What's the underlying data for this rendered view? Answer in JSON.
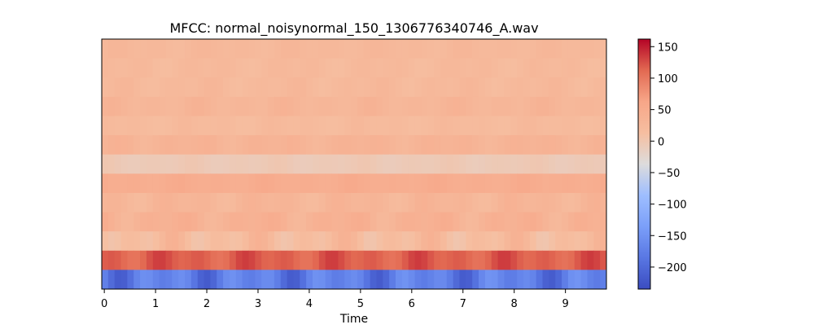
{
  "chart_data": {
    "type": "heatmap",
    "title": "MFCC: normal_noisynormal_150_1306776340746_A.wav",
    "xlabel": "Time",
    "ylabel": "",
    "xlim": [
      -0.05,
      9.8
    ],
    "x_ticks": [
      "0",
      "1",
      "2",
      "3",
      "4",
      "5",
      "6",
      "7",
      "8",
      "9"
    ],
    "frames_per_second": 8.0,
    "n_frames": 79,
    "n_coefficients": 13,
    "y_axis_visible": false,
    "colormap": "coolwarm",
    "color_range": [
      -235,
      162
    ],
    "colorbar_ticks": [
      "150",
      "100",
      "50",
      "0",
      "−50",
      "−100",
      "−150",
      "−200"
    ],
    "rows_top_to_bottom": [
      {
        "coefficient": 13,
        "base": 25,
        "amp": 6
      },
      {
        "coefficient": 12,
        "base": 22,
        "amp": 7
      },
      {
        "coefficient": 11,
        "base": 23,
        "amp": 8
      },
      {
        "coefficient": 10,
        "base": 30,
        "amp": 8
      },
      {
        "coefficient": 9,
        "base": 20,
        "amp": 6
      },
      {
        "coefficient": 8,
        "base": 34,
        "amp": 8
      },
      {
        "coefficient": 7,
        "base": -5,
        "amp": 5
      },
      {
        "coefficient": 6,
        "base": 48,
        "amp": 6
      },
      {
        "coefficient": 5,
        "base": 30,
        "amp": 12
      },
      {
        "coefficient": 4,
        "base": 38,
        "amp": 14
      },
      {
        "coefficient": 3,
        "base": 18,
        "amp": 22
      },
      {
        "coefficient": 2,
        "base": 118,
        "amp": 18
      },
      {
        "coefficient": 1,
        "base": -178,
        "amp": 40
      }
    ]
  }
}
